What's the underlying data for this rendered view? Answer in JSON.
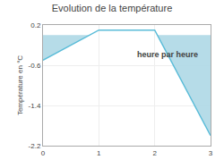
{
  "chart_data": {
    "type": "line",
    "title": "Evolution de la température",
    "ylabel": "Température en °C",
    "x": [
      0,
      1,
      2,
      3
    ],
    "values": [
      -0.5,
      0.1,
      0.1,
      -2.0
    ],
    "color": "#5abcd8",
    "xlim": [
      0,
      3
    ],
    "xticks": [
      0,
      1,
      2,
      3
    ],
    "ylim": [
      -2.2,
      0.2
    ],
    "yticks": [
      0.2,
      -0.6,
      -1.4,
      -2.2
    ],
    "grid": true,
    "annotations": [
      {
        "text": "heure par heure",
        "x": 1.65,
        "y": -0.38
      }
    ]
  }
}
